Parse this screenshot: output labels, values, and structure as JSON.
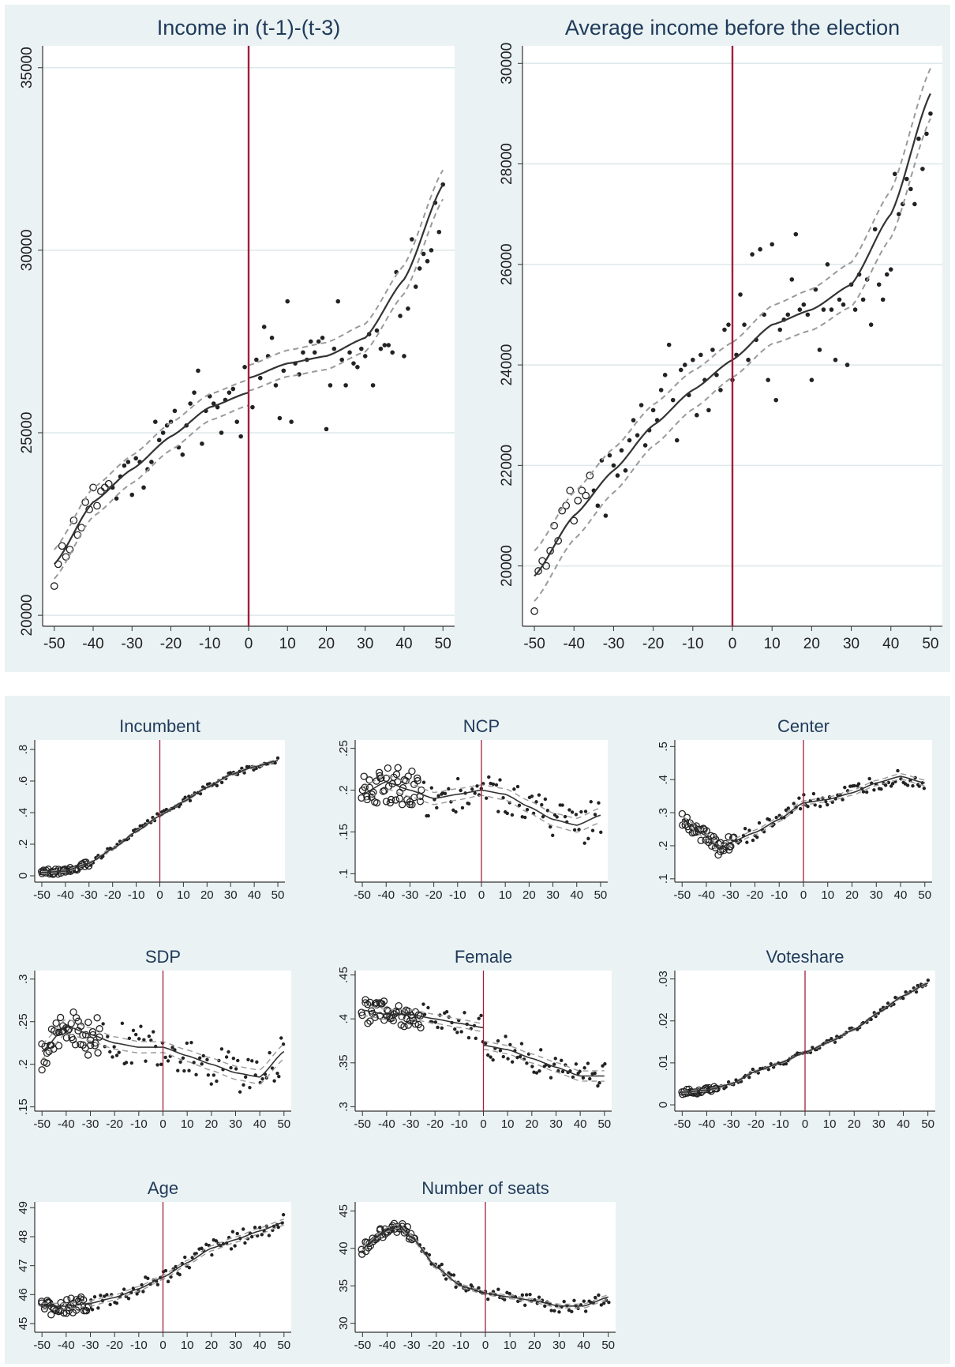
{
  "colors": {
    "background": "#eaf2f3",
    "plot_bg": "#ffffff",
    "grid": "#dde8ea",
    "title": "#1f3a5a",
    "axis_text": "#222222",
    "cutoff_line": "#a11f3a",
    "fit_line": "#333333",
    "ci_line": "#9a9a9a",
    "points": "#222222"
  },
  "chart_data": [
    {
      "id": "income13",
      "type": "scatter",
      "title": "Income in (t-1)-(t-3)",
      "xlabel": "",
      "ylabel": "",
      "xlim": [
        -53,
        53
      ],
      "ylim": [
        19700,
        35600
      ],
      "xticks": [
        -50,
        -40,
        -30,
        -20,
        -10,
        0,
        10,
        20,
        30,
        40,
        50
      ],
      "xtick_labels": [
        "-50",
        "-40",
        "-30",
        "-20",
        "-10",
        "0",
        "10",
        "20",
        "30",
        "40",
        "50"
      ],
      "yticks": [
        20000,
        25000,
        30000,
        35000
      ],
      "ytick_labels": [
        "20000",
        "25000",
        "30000",
        "35000"
      ],
      "grid": true,
      "cutoff": 0,
      "fit_left": {
        "x": [
          -50,
          -40,
          -30,
          -20,
          -10,
          0
        ],
        "y": [
          21400,
          23100,
          24000,
          24900,
          25700,
          26100
        ]
      },
      "fit_right": {
        "x": [
          0,
          10,
          20,
          30,
          40,
          50
        ],
        "y": [
          26500,
          26900,
          27100,
          27600,
          29200,
          31800
        ]
      },
      "ci_halfwidth": [
        350,
        400
      ],
      "points": {
        "x": [
          -50,
          -49,
          -48,
          -47,
          -46,
          -45,
          -44,
          -43,
          -42,
          -41,
          -40,
          -39,
          -38,
          -37,
          -36,
          -35,
          -34,
          -33,
          -32,
          -31,
          -30,
          -29,
          -28,
          -27,
          -26,
          -25,
          -24,
          -23,
          -22,
          -21,
          -20,
          -19,
          -18,
          -17,
          -16,
          -15,
          -14,
          -13,
          -12,
          -11,
          -10,
          -9,
          -8,
          -7,
          -6,
          -5,
          -4,
          -3,
          -2,
          -1,
          1,
          2,
          3,
          4,
          5,
          6,
          7,
          8,
          9,
          10,
          11,
          12,
          13,
          14,
          15,
          16,
          17,
          18,
          19,
          20,
          21,
          22,
          23,
          24,
          25,
          26,
          27,
          28,
          29,
          30,
          31,
          32,
          33,
          34,
          35,
          36,
          37,
          38,
          39,
          40,
          41,
          42,
          43,
          44,
          45,
          46,
          47,
          48,
          49,
          50
        ],
        "y": [
          20800,
          21400,
          21900,
          21600,
          21800,
          22600,
          22200,
          22400,
          23100,
          22900,
          23500,
          23000,
          23400,
          23500,
          23600,
          23500,
          23200,
          23800,
          24100,
          24200,
          23300,
          24300,
          24200,
          23500,
          24000,
          24200,
          25300,
          24800,
          25000,
          25200,
          25300,
          25600,
          24600,
          24400,
          25200,
          25800,
          26100,
          26700,
          24700,
          25600,
          26000,
          25800,
          25700,
          25000,
          25900,
          26100,
          26200,
          25300,
          24900,
          26800,
          25700,
          27000,
          26500,
          27900,
          27100,
          27600,
          26300,
          25400,
          26700,
          28600,
          25300,
          26900,
          26600,
          27200,
          27000,
          27500,
          27200,
          27500,
          27600,
          25100,
          26300,
          27300,
          28600,
          27000,
          26300,
          27200,
          26900,
          26800,
          27300,
          27100,
          27700,
          26300,
          27800,
          27300,
          27400,
          27400,
          27200,
          29400,
          28200,
          27100,
          28400,
          30300,
          29000,
          29500,
          29900,
          29700,
          30000,
          31300,
          30500,
          31800
        ]
      }
    },
    {
      "id": "avgincome",
      "type": "scatter",
      "title": "Average income before the election",
      "xlabel": "",
      "ylabel": "",
      "xlim": [
        -53,
        53
      ],
      "ylim": [
        18800,
        30350
      ],
      "xticks": [
        -50,
        -40,
        -30,
        -20,
        -10,
        0,
        10,
        20,
        30,
        40,
        50
      ],
      "xtick_labels": [
        "-50",
        "-40",
        "-30",
        "-20",
        "-10",
        "0",
        "10",
        "20",
        "30",
        "40",
        "50"
      ],
      "yticks": [
        20000,
        22000,
        24000,
        26000,
        28000,
        30000
      ],
      "ytick_labels": [
        "20000",
        "22000",
        "24000",
        "26000",
        "28000",
        "30000"
      ],
      "grid": true,
      "cutoff": 0,
      "fit_left": {
        "x": [
          -50,
          -40,
          -30,
          -20,
          -10,
          0
        ],
        "y": [
          19800,
          21000,
          21900,
          22800,
          23500,
          24100
        ]
      },
      "fit_right": {
        "x": [
          0,
          10,
          20,
          30,
          40,
          50
        ],
        "y": [
          24100,
          24800,
          25100,
          25600,
          27000,
          29400
        ]
      },
      "ci_halfwidth": [
        350,
        500
      ],
      "points": {
        "x": [
          -50,
          -49,
          -48,
          -47,
          -46,
          -45,
          -44,
          -43,
          -42,
          -41,
          -40,
          -39,
          -38,
          -37,
          -36,
          -35,
          -34,
          -33,
          -32,
          -31,
          -30,
          -29,
          -28,
          -27,
          -26,
          -25,
          -24,
          -23,
          -22,
          -21,
          -20,
          -19,
          -18,
          -17,
          -16,
          -15,
          -14,
          -13,
          -12,
          -11,
          -10,
          -9,
          -8,
          -7,
          -6,
          -5,
          -4,
          -3,
          -2,
          -1,
          0,
          1,
          2,
          3,
          4,
          5,
          6,
          7,
          8,
          9,
          10,
          11,
          12,
          13,
          14,
          15,
          16,
          17,
          18,
          19,
          20,
          21,
          22,
          23,
          24,
          25,
          26,
          27,
          28,
          29,
          30,
          31,
          32,
          33,
          34,
          35,
          36,
          37,
          38,
          39,
          40,
          41,
          42,
          43,
          44,
          45,
          46,
          47,
          48,
          49,
          50
        ],
        "y": [
          19100,
          19900,
          20100,
          20000,
          20300,
          20800,
          20500,
          21100,
          21200,
          21500,
          20900,
          21300,
          21500,
          21400,
          21800,
          21500,
          21200,
          22100,
          21000,
          22200,
          22000,
          21800,
          22300,
          21900,
          22500,
          22900,
          22600,
          23200,
          22400,
          22700,
          23100,
          22900,
          23500,
          23800,
          24400,
          23300,
          22500,
          23900,
          24000,
          23400,
          24100,
          23000,
          24200,
          23700,
          23100,
          24300,
          23800,
          23500,
          24700,
          24800,
          23700,
          24200,
          25400,
          24800,
          24100,
          26200,
          24500,
          26300,
          25000,
          23700,
          26400,
          23300,
          24700,
          24900,
          25000,
          25700,
          26600,
          25100,
          25200,
          25000,
          23700,
          25500,
          24300,
          25100,
          26000,
          25100,
          24100,
          25300,
          25200,
          24000,
          25600,
          25100,
          25800,
          25300,
          25700,
          24800,
          26700,
          25600,
          25300,
          25800,
          25900,
          27800,
          27000,
          27200,
          27700,
          27500,
          27200,
          28500,
          27900,
          28600,
          29000
        ]
      }
    },
    {
      "id": "incumbent",
      "type": "scatter",
      "title": "Incumbent",
      "xlim": [
        -53,
        53
      ],
      "ylim": [
        -0.04,
        0.86
      ],
      "xticks": [
        -50,
        -40,
        -30,
        -20,
        -10,
        0,
        10,
        20,
        30,
        40,
        50
      ],
      "xtick_labels": [
        "-50",
        "-40",
        "-30",
        "-20",
        "-10",
        "0",
        "10",
        "20",
        "30",
        "40",
        "50"
      ],
      "yticks": [
        0,
        0.2,
        0.4,
        0.6,
        0.8
      ],
      "ytick_labels": [
        "0",
        ".2",
        ".4",
        ".6",
        ".8"
      ],
      "grid": false,
      "cutoff": 0,
      "fit": {
        "x": [
          -50,
          -40,
          -30,
          -20,
          -10,
          0,
          10,
          20,
          30,
          40,
          50
        ],
        "y": [
          0.02,
          0.03,
          0.08,
          0.17,
          0.28,
          0.38,
          0.47,
          0.56,
          0.64,
          0.69,
          0.73
        ]
      },
      "points_from_fit": true,
      "noise": 0.02,
      "big_points_xmax": -30
    },
    {
      "id": "ncp",
      "type": "scatter",
      "title": "NCP",
      "xlim": [
        -53,
        53
      ],
      "ylim": [
        0.09,
        0.26
      ],
      "xticks": [
        -50,
        -40,
        -30,
        -20,
        -10,
        0,
        10,
        20,
        30,
        40,
        50
      ],
      "xtick_labels": [
        "-50",
        "-40",
        "-30",
        "-20",
        "-10",
        "0",
        "10",
        "20",
        "30",
        "40",
        "50"
      ],
      "yticks": [
        0.1,
        0.15,
        0.2,
        0.25
      ],
      "ytick_labels": [
        ".1",
        ".15",
        ".2",
        ".25"
      ],
      "grid": false,
      "cutoff": 0,
      "fit": {
        "x": [
          -50,
          -40,
          -30,
          -20,
          -10,
          0,
          10,
          20,
          30,
          40,
          50
        ],
        "y": [
          0.195,
          0.21,
          0.2,
          0.19,
          0.195,
          0.2,
          0.195,
          0.18,
          0.165,
          0.158,
          0.17
        ]
      },
      "points_from_fit": true,
      "noise": 0.025,
      "big_points_xmax": -25
    },
    {
      "id": "center",
      "type": "scatter",
      "title": "Center",
      "xlim": [
        -53,
        53
      ],
      "ylim": [
        0.09,
        0.52
      ],
      "xticks": [
        -50,
        -40,
        -30,
        -20,
        -10,
        0,
        10,
        20,
        30,
        40,
        50
      ],
      "xtick_labels": [
        "-50",
        "-40",
        "-30",
        "-20",
        "-10",
        "0",
        "10",
        "20",
        "30",
        "40",
        "50"
      ],
      "yticks": [
        0.1,
        0.2,
        0.3,
        0.4,
        0.5
      ],
      "ytick_labels": [
        ".1",
        ".2",
        ".3",
        ".4",
        ".5"
      ],
      "grid": false,
      "cutoff": 0,
      "fit": {
        "x": [
          -50,
          -40,
          -35,
          -30,
          -20,
          -10,
          0,
          10,
          20,
          30,
          40,
          50
        ],
        "y": [
          0.28,
          0.23,
          0.19,
          0.21,
          0.24,
          0.28,
          0.33,
          0.34,
          0.36,
          0.39,
          0.41,
          0.39
        ]
      },
      "points_from_fit": true,
      "noise": 0.025,
      "big_points_xmax": -28
    },
    {
      "id": "sdp",
      "type": "scatter",
      "title": "SDP",
      "xlim": [
        -53,
        53
      ],
      "ylim": [
        0.145,
        0.31
      ],
      "xticks": [
        -50,
        -40,
        -30,
        -20,
        -10,
        0,
        10,
        20,
        30,
        40,
        50
      ],
      "xtick_labels": [
        "-50",
        "-40",
        "-30",
        "-20",
        "-10",
        "0",
        "10",
        "20",
        "30",
        "40",
        "50"
      ],
      "yticks": [
        0.15,
        0.2,
        0.25,
        0.3
      ],
      "ytick_labels": [
        ".15",
        ".2",
        ".25",
        ".3"
      ],
      "grid": false,
      "cutoff": 0,
      "fit": {
        "x": [
          -50,
          -40,
          -30,
          -20,
          -10,
          0,
          10,
          20,
          30,
          40,
          50
        ],
        "y": [
          0.215,
          0.245,
          0.235,
          0.225,
          0.22,
          0.22,
          0.21,
          0.2,
          0.19,
          0.185,
          0.215
        ]
      },
      "points_from_fit": true,
      "noise": 0.025,
      "big_points_xmax": -25
    },
    {
      "id": "female",
      "type": "scatter",
      "title": "Female",
      "xlim": [
        -53,
        53
      ],
      "ylim": [
        0.295,
        0.455
      ],
      "xticks": [
        -50,
        -40,
        -30,
        -20,
        -10,
        0,
        10,
        20,
        30,
        40,
        50
      ],
      "xtick_labels": [
        "-50",
        "-40",
        "-30",
        "-20",
        "-10",
        "0",
        "10",
        "20",
        "30",
        "40",
        "50"
      ],
      "yticks": [
        0.3,
        0.35,
        0.4,
        0.45
      ],
      "ytick_labels": [
        ".3",
        ".35",
        ".4",
        ".45"
      ],
      "grid": false,
      "cutoff": 0,
      "fit_left": {
        "x": [
          -50,
          -40,
          -30,
          -20,
          -10,
          0
        ],
        "y": [
          0.41,
          0.405,
          0.405,
          0.4,
          0.395,
          0.39
        ]
      },
      "fit_right": {
        "x": [
          0,
          10,
          20,
          30,
          40,
          50
        ],
        "y": [
          0.37,
          0.365,
          0.355,
          0.345,
          0.335,
          0.335
        ]
      },
      "points_from_fit": true,
      "noise": 0.015,
      "big_points_xmax": -25
    },
    {
      "id": "voteshare",
      "type": "scatter",
      "title": "Voteshare",
      "xlim": [
        -53,
        53
      ],
      "ylim": [
        -0.0015,
        0.032
      ],
      "xticks": [
        -50,
        -40,
        -30,
        -20,
        -10,
        0,
        10,
        20,
        30,
        40,
        50
      ],
      "xtick_labels": [
        "-50",
        "-40",
        "-30",
        "-20",
        "-10",
        "0",
        "10",
        "20",
        "30",
        "40",
        "50"
      ],
      "yticks": [
        0,
        0.01,
        0.02,
        0.03
      ],
      "ytick_labels": [
        "0",
        ".01",
        ".02",
        ".03"
      ],
      "grid": false,
      "cutoff": 0,
      "fit": {
        "x": [
          -50,
          -40,
          -30,
          -20,
          -10,
          0,
          10,
          20,
          30,
          40,
          50
        ],
        "y": [
          0.003,
          0.0035,
          0.005,
          0.008,
          0.01,
          0.0125,
          0.015,
          0.018,
          0.022,
          0.026,
          0.029
        ]
      },
      "points_from_fit": true,
      "noise": 0.0007,
      "big_points_xmax": -35
    },
    {
      "id": "age",
      "type": "scatter",
      "title": "Age",
      "xlim": [
        -53,
        53
      ],
      "ylim": [
        44.7,
        49.2
      ],
      "xticks": [
        -50,
        -40,
        -30,
        -20,
        -10,
        0,
        10,
        20,
        30,
        40,
        50
      ],
      "xtick_labels": [
        "-50",
        "-40",
        "-30",
        "-20",
        "-10",
        "0",
        "10",
        "20",
        "30",
        "40",
        "50"
      ],
      "yticks": [
        45,
        46,
        47,
        48,
        49
      ],
      "ytick_labels": [
        "45",
        "46",
        "47",
        "48",
        "49"
      ],
      "grid": false,
      "cutoff": 0,
      "fit": {
        "x": [
          -50,
          -40,
          -30,
          -20,
          -10,
          0,
          10,
          20,
          30,
          40,
          50
        ],
        "y": [
          45.6,
          45.6,
          45.7,
          45.9,
          46.2,
          46.6,
          47.1,
          47.6,
          47.9,
          48.2,
          48.5
        ]
      },
      "points_from_fit": true,
      "noise": 0.3,
      "big_points_xmax": -30
    },
    {
      "id": "seats",
      "type": "scatter",
      "title": "Number of seats",
      "xlim": [
        -53,
        53
      ],
      "ylim": [
        28.8,
        46.2
      ],
      "xticks": [
        -50,
        -40,
        -30,
        -20,
        -10,
        0,
        10,
        20,
        30,
        40,
        50
      ],
      "xtick_labels": [
        "-50",
        "-40",
        "-30",
        "-20",
        "-10",
        "0",
        "10",
        "20",
        "30",
        "40",
        "50"
      ],
      "yticks": [
        30,
        35,
        40,
        45
      ],
      "ytick_labels": [
        "30",
        "35",
        "40",
        "45"
      ],
      "grid": false,
      "cutoff": 0,
      "fit": {
        "x": [
          -50,
          -40,
          -35,
          -30,
          -20,
          -10,
          0,
          10,
          20,
          30,
          40,
          50
        ],
        "y": [
          40,
          42.5,
          43,
          41.5,
          37.5,
          35,
          34,
          33.5,
          33,
          32.3,
          32.3,
          33.5
        ]
      },
      "points_from_fit": true,
      "noise": 0.8,
      "big_points_xmax": -28
    }
  ]
}
